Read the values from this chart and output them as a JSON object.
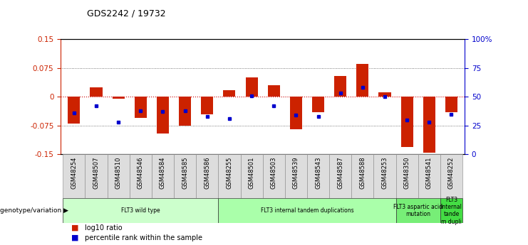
{
  "title": "GDS2242 / 19732",
  "samples": [
    "GSM48254",
    "GSM48507",
    "GSM48510",
    "GSM48546",
    "GSM48584",
    "GSM48585",
    "GSM48586",
    "GSM48255",
    "GSM48501",
    "GSM48503",
    "GSM48539",
    "GSM48543",
    "GSM48587",
    "GSM48588",
    "GSM48253",
    "GSM48350",
    "GSM48541",
    "GSM48252"
  ],
  "log10_ratio": [
    -0.07,
    0.025,
    -0.005,
    -0.055,
    -0.095,
    -0.075,
    -0.045,
    0.018,
    0.05,
    0.03,
    -0.085,
    -0.04,
    0.055,
    0.085,
    0.012,
    -0.13,
    -0.145,
    -0.04
  ],
  "percentile_rank": [
    36,
    42,
    28,
    38,
    37,
    38,
    33,
    31,
    51,
    42,
    34,
    33,
    53,
    58,
    50,
    30,
    28,
    35
  ],
  "ylim": [
    -0.15,
    0.15
  ],
  "yticks_left": [
    -0.15,
    -0.075,
    0,
    0.075,
    0.15
  ],
  "yticks_right": [
    0,
    25,
    50,
    75,
    100
  ],
  "bar_color": "#cc2200",
  "dot_color": "#0000cc",
  "groups": [
    {
      "label": "FLT3 wild type",
      "start": 0,
      "end": 7,
      "color": "#ccffcc"
    },
    {
      "label": "FLT3 internal tandem duplications",
      "start": 7,
      "end": 15,
      "color": "#aaffaa"
    },
    {
      "label": "FLT3 aspartic acid\nmutation",
      "start": 15,
      "end": 17,
      "color": "#77ee77"
    },
    {
      "label": "FLT3\ninternal\ntande\nm dupli",
      "start": 17,
      "end": 18,
      "color": "#44dd44"
    }
  ],
  "legend_items": [
    {
      "label": "log10 ratio",
      "color": "#cc2200"
    },
    {
      "label": "percentile rank within the sample",
      "color": "#0000cc"
    }
  ],
  "bg_color": "#ffffff",
  "bar_width": 0.55
}
